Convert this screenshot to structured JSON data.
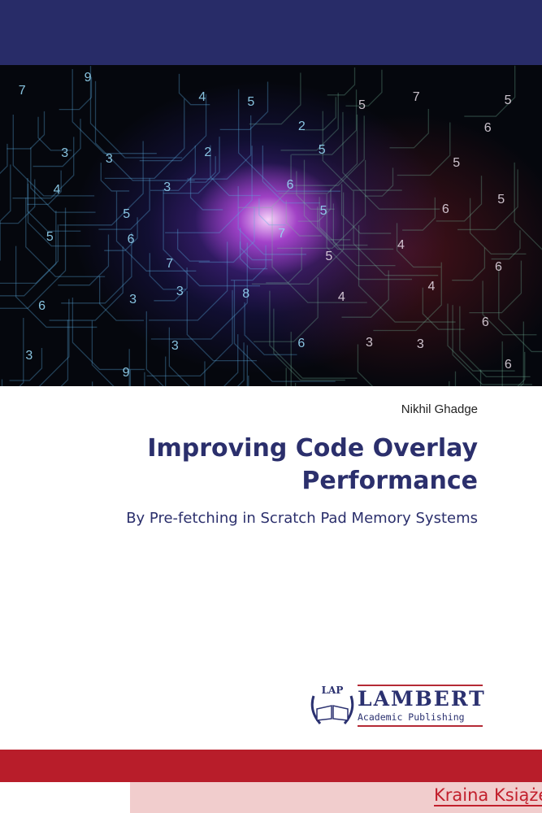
{
  "cover": {
    "author": "Nikhil Ghadge",
    "title": "Improving Code Overlay Performance",
    "subtitle": "By Pre-fetching in Scratch Pad Memory Systems",
    "colors": {
      "header_band": "#282c68",
      "title_text": "#2b2f6c",
      "red_band": "#b81d2a",
      "pink_band": "#f1cdcd"
    }
  },
  "cover_art": {
    "description_icon": "circuit-digits-vortex-image",
    "digits": [
      "7",
      "9",
      "4",
      "5",
      "5",
      "7",
      "5",
      "3",
      "3",
      "2",
      "2",
      "5",
      "5",
      "6",
      "4",
      "5",
      "3",
      "6",
      "5",
      "6",
      "5",
      "5",
      "6",
      "7",
      "7",
      "5",
      "4",
      "6",
      "6",
      "3",
      "3",
      "8",
      "4",
      "4",
      "6",
      "3",
      "9",
      "3",
      "6",
      "3",
      "3",
      "6"
    ]
  },
  "publisher": {
    "logo_mark": "LAP",
    "name": "LAMBERT",
    "tagline": "Academic Publishing"
  },
  "footer": {
    "seller": "Kraina Książek"
  }
}
